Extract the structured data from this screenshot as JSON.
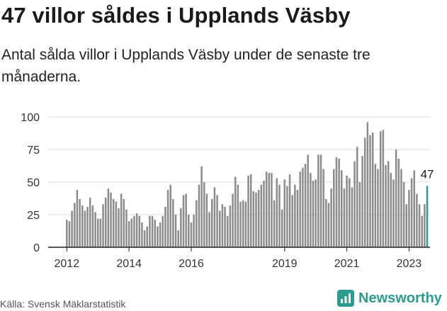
{
  "title": "47 villor såldes i Upplands Väsby",
  "subtitle": "Antal sålda villor i Upplands Väsby under de senaste tre månaderna.",
  "source": "Källa: Svensk Mäklarstatistik",
  "brand": "Newsworthy",
  "colors": {
    "bar": "#8c8c8c",
    "highlight": "#2a9d8f",
    "axis": "#222222",
    "grid": "#dddddd",
    "brand": "#2a9d8f"
  },
  "chart_data": {
    "type": "bar",
    "title": "47 villor såldes i Upplands Väsby",
    "subtitle": "Antal sålda villor i Upplands Väsby under de senaste tre månaderna.",
    "xlabel": "",
    "ylabel": "",
    "ylim": [
      0,
      100
    ],
    "yticks": [
      0,
      25,
      50,
      75,
      100
    ],
    "x_start": "2012-01",
    "x_end": "2023-03",
    "xticks": [
      {
        "label": "2012",
        "position": 2012.0
      },
      {
        "label": "2014",
        "position": 2014.0
      },
      {
        "label": "2016",
        "position": 2016.0
      },
      {
        "label": "2019",
        "position": 2019.0
      },
      {
        "label": "2021",
        "position": 2021.0
      },
      {
        "label": "2023",
        "position": 2023.0
      }
    ],
    "value_label": "47",
    "values": [
      21,
      20,
      28,
      34,
      44,
      37,
      32,
      28,
      31,
      38,
      32,
      27,
      22,
      22,
      33,
      38,
      45,
      42,
      37,
      35,
      30,
      41,
      37,
      29,
      20,
      22,
      24,
      26,
      24,
      19,
      13,
      16,
      24,
      24,
      21,
      16,
      19,
      24,
      31,
      44,
      48,
      37,
      25,
      13,
      30,
      40,
      41,
      25,
      19,
      25,
      36,
      48,
      62,
      50,
      41,
      27,
      37,
      46,
      40,
      28,
      33,
      31,
      24,
      32,
      41,
      54,
      48,
      35,
      36,
      35,
      55,
      56,
      43,
      42,
      44,
      48,
      51,
      58,
      57,
      57,
      36,
      53,
      48,
      29,
      52,
      47,
      56,
      40,
      48,
      44,
      58,
      61,
      64,
      71,
      57,
      51,
      52,
      71,
      71,
      60,
      37,
      34,
      45,
      60,
      69,
      68,
      59,
      45,
      55,
      53,
      46,
      66,
      77,
      50,
      70,
      84,
      96,
      86,
      88,
      64,
      60,
      89,
      90,
      63,
      66,
      57,
      52,
      75,
      68,
      60,
      50,
      33,
      44,
      53,
      59,
      41,
      33,
      24,
      33,
      47
    ]
  }
}
